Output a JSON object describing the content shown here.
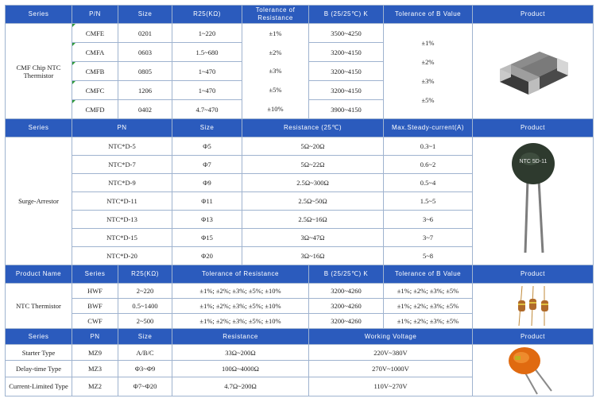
{
  "s1": {
    "headers": [
      "Series",
      "P/N",
      "Size",
      "R25(KΩ)",
      "Tolerance of Resistance",
      "B (25/25℃) K",
      "Tolerance of B Value",
      "Product"
    ],
    "series": "CMF Chip NTC Thermistor",
    "rows": [
      {
        "pn": "CMFE",
        "size": "0201",
        "r25": "1~220",
        "b": "3500~4250"
      },
      {
        "pn": "CMFA",
        "size": "0603",
        "r25": "1.5~680",
        "b": "3200~4150"
      },
      {
        "pn": "CMFB",
        "size": "0805",
        "r25": "1~470",
        "b": "3200~4150"
      },
      {
        "pn": "CMFC",
        "size": "1206",
        "r25": "1~470",
        "b": "3200~4150"
      },
      {
        "pn": "CMFD",
        "size": "0402",
        "r25": "4.7~470",
        "b": "3900~4150"
      }
    ],
    "tol_r": [
      "±1%",
      "±2%",
      "±3%",
      "±5%",
      "±10%"
    ],
    "tol_b": [
      "±1%",
      "±2%",
      "±3%",
      "±5%"
    ]
  },
  "s2": {
    "headers": [
      "Series",
      "PN",
      "Size",
      "Resistance (25℃)",
      "Max.Steady-current(A)",
      "Product"
    ],
    "series": "Surge-Arrestor",
    "product_label": "NTC 5D-11",
    "rows": [
      {
        "pn": "NTC*D-5",
        "size": "Φ5",
        "res": "5Ω~20Ω",
        "cur": "0.3~1"
      },
      {
        "pn": "NTC*D-7",
        "size": "Φ7",
        "res": "5Ω~22Ω",
        "cur": "0.6~2"
      },
      {
        "pn": "NTC*D-9",
        "size": "Φ9",
        "res": "2.5Ω~300Ω",
        "cur": "0.5~4"
      },
      {
        "pn": "NTC*D-11",
        "size": "Φ11",
        "res": "2.5Ω~50Ω",
        "cur": "1.5~5"
      },
      {
        "pn": "NTC*D-13",
        "size": "Φ13",
        "res": "2.5Ω~16Ω",
        "cur": "3~6"
      },
      {
        "pn": "NTC*D-15",
        "size": "Φ15",
        "res": "3Ω~47Ω",
        "cur": "3~7"
      },
      {
        "pn": "NTC*D-20",
        "size": "Φ20",
        "res": "3Ω~16Ω",
        "cur": "5~8"
      }
    ]
  },
  "s3": {
    "headers": [
      "Product Name",
      "Series",
      "R25(KΩ)",
      "Tolerance of Resistance",
      "B (25/25℃) K",
      "Tolerance of B Value",
      "Product"
    ],
    "name": "NTC Thermistor",
    "rows": [
      {
        "series": "HWF",
        "r25": "2~220",
        "tol": "±1%; ±2%; ±3%; ±5%; ±10%",
        "b": "3200~4260",
        "tolb": "±1%; ±2%; ±3%; ±5%"
      },
      {
        "series": "BWF",
        "r25": "0.5~1400",
        "tol": "±1%; ±2%; ±3%; ±5%; ±10%",
        "b": "3200~4260",
        "tolb": "±1%; ±2%; ±3%; ±5%"
      },
      {
        "series": "CWF",
        "r25": "2~500",
        "tol": "±1%; ±2%; ±3%; ±5%; ±10%",
        "b": "3200~4260",
        "tolb": "±1%; ±2%; ±3%; ±5%"
      }
    ]
  },
  "s4": {
    "headers": [
      "Series",
      "PN",
      "Size",
      "Resistance",
      "Working Voltage",
      "Product"
    ],
    "rows": [
      {
        "series": "Starter Type",
        "pn": "MZ9",
        "size": "A/B/C",
        "res": "33Ω~200Ω",
        "volt": "220V~380V"
      },
      {
        "series": "Delay-time Type",
        "pn": "MZ3",
        "size": "Φ3~Φ9",
        "res": "100Ω~4000Ω",
        "volt": "270V~1000V"
      },
      {
        "series": "Current-Limited Type",
        "pn": "MZ2",
        "size": "Φ7~Φ20",
        "res": "4.7Ω~200Ω",
        "volt": "110V~270V"
      }
    ]
  },
  "colors": {
    "header_bg": "#2b5bbd",
    "border": "#9fb3cf",
    "marker": "#2e9a3a"
  }
}
